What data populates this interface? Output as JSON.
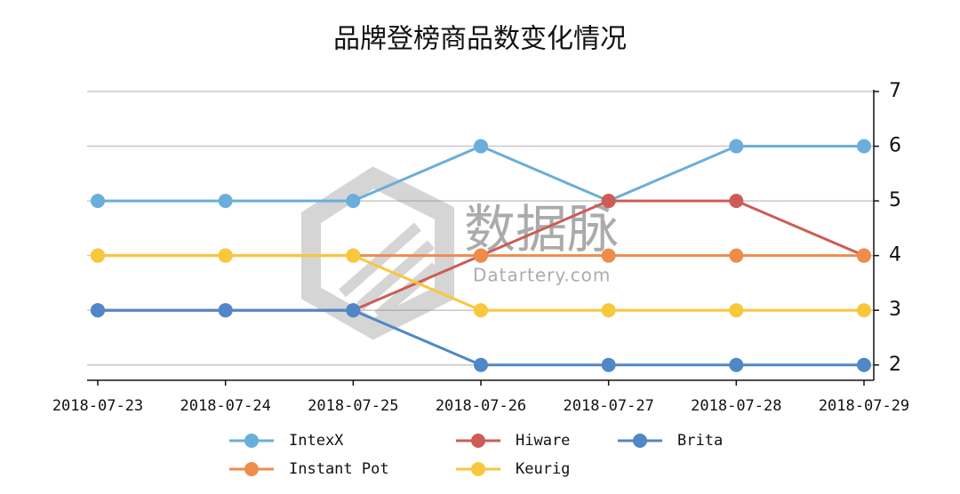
{
  "chart_data": {
    "type": "line",
    "title": "品牌登榜商品数变化情况",
    "categories": [
      "2018-07-23",
      "2018-07-24",
      "2018-07-25",
      "2018-07-26",
      "2018-07-27",
      "2018-07-28",
      "2018-07-29"
    ],
    "series": [
      {
        "name": "IntexX",
        "color": "#6aaedb",
        "values": [
          5,
          5,
          5,
          6,
          5,
          6,
          6
        ]
      },
      {
        "name": "Hiware",
        "color": "#cd5c56",
        "values": [
          3,
          3,
          3,
          4,
          5,
          5,
          4
        ]
      },
      {
        "name": "Brita",
        "color": "#4f87c8",
        "values": [
          3,
          3,
          3,
          2,
          2,
          2,
          2
        ]
      },
      {
        "name": "Instant Pot",
        "color": "#ee8c4a",
        "values": [
          4,
          4,
          4,
          4,
          4,
          4,
          4
        ]
      },
      {
        "name": "Keurig",
        "color": "#f9c73c",
        "values": [
          4,
          4,
          4,
          3,
          3,
          3,
          3
        ]
      }
    ],
    "ylim": [
      1.72,
      7
    ],
    "yticks": [
      2,
      3,
      4,
      5,
      6,
      7
    ],
    "grid": true,
    "y_axis_side": "right",
    "watermark": {
      "text": "数据脉",
      "subtext": "Datartery.com"
    }
  }
}
